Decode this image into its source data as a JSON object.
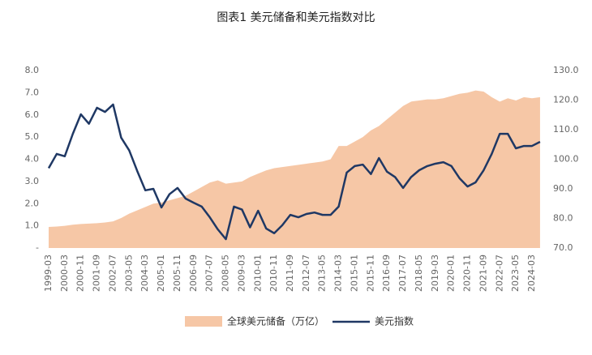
{
  "chart_data": {
    "type": "combo",
    "title": "图表1 美元储备和美元指数对比",
    "categories": [
      "1999-03",
      null,
      "2000-03",
      null,
      "2000-11",
      null,
      "2001-09",
      null,
      "2002-07",
      null,
      "2003-05",
      null,
      "2004-03",
      null,
      "2005-01",
      null,
      "2005-11",
      null,
      "2006-09",
      null,
      "2007-07",
      null,
      "2008-05",
      null,
      "2009-03",
      null,
      "2010-01",
      null,
      "2010-11",
      null,
      "2011-09",
      null,
      "2012-07",
      null,
      "2013-05",
      null,
      "2014-03",
      null,
      "2015-01",
      null,
      "2015-11",
      null,
      "2016-09",
      null,
      "2017-07",
      null,
      "2018-05",
      null,
      "2019-03",
      null,
      "2020-01",
      null,
      "2020-11",
      null,
      "2021-09",
      null,
      "2022-07",
      null,
      "2023-05",
      null,
      "2024-03",
      null
    ],
    "series": [
      {
        "name": "全球美元储备（万亿）",
        "type": "area",
        "color": "#f6c7a6",
        "values": [
          0.95,
          0.97,
          1.0,
          1.05,
          1.08,
          1.1,
          1.12,
          1.15,
          1.2,
          1.35,
          1.55,
          1.7,
          1.85,
          2.0,
          2.05,
          2.15,
          2.25,
          2.35,
          2.55,
          2.75,
          2.95,
          3.05,
          2.9,
          2.95,
          3.0,
          3.2,
          3.35,
          3.5,
          3.6,
          3.65,
          3.7,
          3.75,
          3.8,
          3.85,
          3.9,
          4.0,
          4.6,
          4.6,
          4.8,
          5.0,
          5.3,
          5.5,
          5.8,
          6.1,
          6.4,
          6.6,
          6.65,
          6.7,
          6.7,
          6.75,
          6.85,
          6.95,
          7.0,
          7.1,
          7.05,
          6.8,
          6.6,
          6.75,
          6.65,
          6.8,
          6.75,
          6.8
        ]
      },
      {
        "name": "美元指数",
        "type": "line",
        "axis": "y2",
        "color": "#1f3864",
        "values": [
          97,
          101.8,
          101,
          108.6,
          115.2,
          112,
          117.4,
          116,
          118.5,
          107.3,
          103,
          96,
          89.5,
          90,
          83.7,
          88.2,
          90.3,
          86.7,
          85.3,
          84,
          80.4,
          76.3,
          73,
          84,
          83,
          77,
          82.6,
          76.6,
          75,
          77.7,
          81.2,
          80.4,
          81.5,
          82,
          81.2,
          81.2,
          84,
          95.5,
          97.7,
          98.2,
          95,
          100.4,
          95.8,
          94,
          90.3,
          94,
          96.3,
          97.7,
          98.5,
          99,
          97.7,
          93.6,
          90.8,
          92.2,
          96.3,
          101.8,
          108.6,
          108.6,
          103.7,
          104.5,
          104.5,
          105.9
        ]
      }
    ],
    "ylim": [
      0,
      8
    ],
    "yticks": [
      {
        "value": 0,
        "label": "-"
      },
      {
        "value": 1,
        "label": "1.0"
      },
      {
        "value": 2,
        "label": "2.0"
      },
      {
        "value": 3,
        "label": "3.0"
      },
      {
        "value": 4,
        "label": "4.0"
      },
      {
        "value": 5,
        "label": "5.0"
      },
      {
        "value": 6,
        "label": "6.0"
      },
      {
        "value": 7,
        "label": "7.0"
      },
      {
        "value": 8,
        "label": "8.0"
      }
    ],
    "y2lim": [
      70,
      130
    ],
    "y2ticks": [
      {
        "value": 70,
        "label": "70.0"
      },
      {
        "value": 80,
        "label": "80.0"
      },
      {
        "value": 90,
        "label": "90.0"
      },
      {
        "value": 100,
        "label": "100.0"
      },
      {
        "value": 110,
        "label": "110.0"
      },
      {
        "value": 120,
        "label": "120.0"
      },
      {
        "value": 130,
        "label": "130.0"
      }
    ],
    "grid": false
  }
}
